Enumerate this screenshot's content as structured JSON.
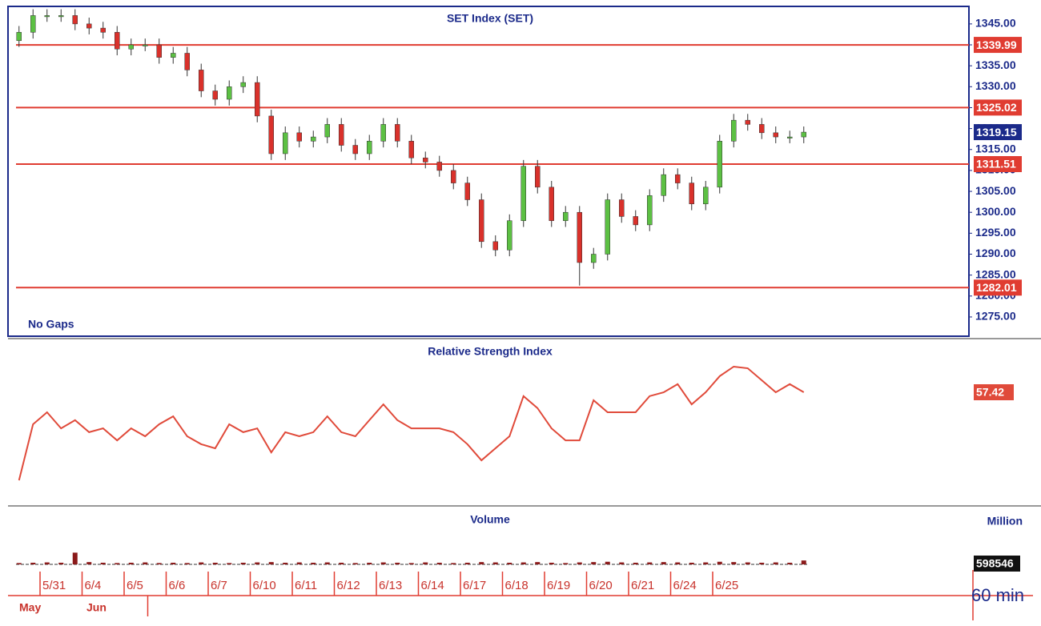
{
  "chart_data": [
    {
      "type": "candlestick",
      "title": "SET Index (SET)",
      "annotation": "No Gaps",
      "up_color": "#5cc043",
      "down_color": "#d9312b",
      "level_color": "#e03c31",
      "open": [
        1341,
        1343,
        1347,
        1347,
        1347,
        1345,
        1344,
        1343,
        1339,
        1340,
        1340,
        1337,
        1338,
        1334,
        1329,
        1327,
        1330,
        1331,
        1323,
        1314,
        1319,
        1317,
        1318,
        1321,
        1316,
        1314,
        1317,
        1321,
        1317,
        1313,
        1312,
        1310,
        1307,
        1303,
        1293,
        1291,
        1298,
        1311,
        1306,
        1298,
        1300,
        1288,
        1290,
        1303,
        1299,
        1297,
        1304,
        1309,
        1307,
        1302,
        1306,
        1317,
        1322,
        1321,
        1319,
        1318,
        1318
      ],
      "high": [
        1344.5,
        1348.5,
        1348.5,
        1348.5,
        1348.5,
        1346.5,
        1345.5,
        1344.5,
        1341.5,
        1341.5,
        1341.5,
        1339.5,
        1339.5,
        1335.5,
        1330.5,
        1331.5,
        1332.5,
        1332.5,
        1324.5,
        1320.5,
        1320.5,
        1319.5,
        1322.5,
        1322.5,
        1317.5,
        1318.5,
        1322.5,
        1322.5,
        1318.5,
        1314.5,
        1313.5,
        1311.5,
        1308.5,
        1304.5,
        1294.5,
        1299.5,
        1312.5,
        1312.5,
        1307.5,
        1301.5,
        1301.5,
        1291.5,
        1304.5,
        1304.5,
        1300.5,
        1305.5,
        1310.5,
        1310.5,
        1308.5,
        1307.5,
        1318.5,
        1323.5,
        1323.5,
        1322.5,
        1320.5,
        1319.5,
        1320.5
      ],
      "low": [
        1339.5,
        1341.5,
        1345.5,
        1345.5,
        1343.5,
        1342.5,
        1341.5,
        1337.5,
        1337.5,
        1338.5,
        1335.5,
        1335.5,
        1332.5,
        1327.5,
        1325.5,
        1325.5,
        1328.5,
        1321.5,
        1312.5,
        1312.5,
        1315.5,
        1315.5,
        1316.5,
        1314.5,
        1312.5,
        1312.5,
        1315.5,
        1315.5,
        1311.5,
        1310.5,
        1308.5,
        1305.5,
        1301.5,
        1291.5,
        1289.5,
        1289.5,
        1296.5,
        1304.5,
        1296.5,
        1296.5,
        1282.5,
        1286.5,
        1288.5,
        1297.5,
        1295.5,
        1295.5,
        1302.5,
        1305.5,
        1300.5,
        1300.5,
        1304.5,
        1315.5,
        1319.5,
        1317.5,
        1316.5,
        1316.5,
        1316.5
      ],
      "close": [
        1343,
        1347,
        1347,
        1347,
        1345,
        1344,
        1343,
        1339,
        1340,
        1340,
        1337,
        1338,
        1334,
        1329,
        1327,
        1330,
        1331,
        1323,
        1314,
        1319,
        1317,
        1318,
        1321,
        1316,
        1314,
        1317,
        1321,
        1317,
        1313,
        1312,
        1310,
        1307,
        1303,
        1293,
        1291,
        1298,
        1311,
        1306,
        1298,
        1300,
        1288,
        1290,
        1303,
        1299,
        1297,
        1304,
        1309,
        1307,
        1302,
        1306,
        1317,
        1322,
        1321,
        1319,
        1318,
        1318,
        1319.15
      ],
      "ylim": [
        1270.4,
        1348.8
      ],
      "yticks": [
        {
          "value": 1275,
          "label": "1275.00"
        },
        {
          "value": 1280,
          "label": "1280.00"
        },
        {
          "value": 1285,
          "label": "1285.00"
        },
        {
          "value": 1290,
          "label": "1290.00"
        },
        {
          "value": 1295,
          "label": "1295.00"
        },
        {
          "value": 1300,
          "label": "1300.00"
        },
        {
          "value": 1305,
          "label": "1305.00"
        },
        {
          "value": 1310,
          "label": "1310.00"
        },
        {
          "value": 1315,
          "label": "1315.00"
        },
        {
          "value": 1320,
          "label": "1320.00"
        },
        {
          "value": 1325,
          "label": "1325.00"
        },
        {
          "value": 1330,
          "label": "1330.00"
        },
        {
          "value": 1335,
          "label": "1335.00"
        },
        {
          "value": 1340,
          "label": "1340.00"
        },
        {
          "value": 1345,
          "label": "1345.00"
        }
      ],
      "levels": [
        1339.99,
        1325.02,
        1311.51,
        1282.01
      ]
    },
    {
      "type": "line",
      "title": "Relative Strength Index",
      "color": "#e04a3a",
      "values": [
        25.2,
        45.7,
        50.1,
        44.2,
        47.2,
        42.8,
        44.2,
        39.8,
        44.2,
        41.3,
        45.7,
        48.6,
        41.3,
        38.4,
        36.9,
        45.7,
        42.8,
        44.2,
        35.4,
        42.8,
        41.3,
        42.8,
        48.6,
        42.8,
        41.3,
        47.2,
        53,
        47.2,
        44.2,
        44.2,
        44.2,
        42.8,
        38.4,
        32.5,
        36.9,
        41.3,
        56,
        51.6,
        44.2,
        39.8,
        39.8,
        54.5,
        50.1,
        50.1,
        50.1,
        56,
        57.4,
        60.4,
        53,
        57.4,
        63.3,
        66.8,
        66.2,
        61.8,
        57.4,
        60.4,
        57.42
      ],
      "ylim": [
        16.4,
        75
      ]
    },
    {
      "type": "bar",
      "title": "Volume",
      "unit_label": "Million",
      "interval": "60 min",
      "color": "#8b1a1a",
      "values": [
        200000,
        250000,
        300000,
        250000,
        1800000,
        350000,
        250000,
        200000,
        250000,
        300000,
        200000,
        250000,
        200000,
        300000,
        250000,
        200000,
        250000,
        300000,
        350000,
        250000,
        300000,
        250000,
        300000,
        250000,
        200000,
        250000,
        300000,
        250000,
        200000,
        300000,
        250000,
        200000,
        250000,
        350000,
        300000,
        250000,
        300000,
        350000,
        250000,
        200000,
        300000,
        350000,
        400000,
        300000,
        250000,
        300000,
        350000,
        300000,
        250000,
        300000,
        400000,
        350000,
        300000,
        250000,
        300000,
        250000,
        598546
      ],
      "ylim": [
        0,
        8000000
      ],
      "categories": [
        null,
        null,
        "5/31",
        null,
        null,
        "6/4",
        null,
        null,
        "6/5",
        null,
        null,
        "6/6",
        null,
        null,
        "6/7",
        null,
        null,
        "6/10",
        null,
        null,
        "6/11",
        null,
        null,
        "6/12",
        null,
        null,
        "6/13",
        null,
        null,
        "6/14",
        null,
        null,
        "6/17",
        null,
        null,
        "6/18",
        null,
        null,
        "6/19",
        null,
        null,
        "6/20",
        null,
        null,
        "6/21",
        null,
        null,
        "6/24",
        null,
        null,
        "6/25",
        null,
        null,
        null,
        null,
        null,
        null
      ],
      "months": [
        "May",
        null,
        null,
        null,
        null,
        "Jun",
        null,
        null,
        null,
        null,
        null,
        null,
        null,
        null,
        null,
        null,
        null,
        null,
        null,
        null,
        null,
        null,
        null,
        null,
        null,
        null,
        null,
        null,
        null,
        null,
        null,
        null,
        null,
        null,
        null,
        null,
        null,
        null,
        null,
        null,
        null,
        null,
        null,
        null,
        null,
        null,
        null,
        null,
        null,
        null,
        null,
        null,
        null,
        null,
        null,
        null,
        null
      ]
    }
  ]
}
